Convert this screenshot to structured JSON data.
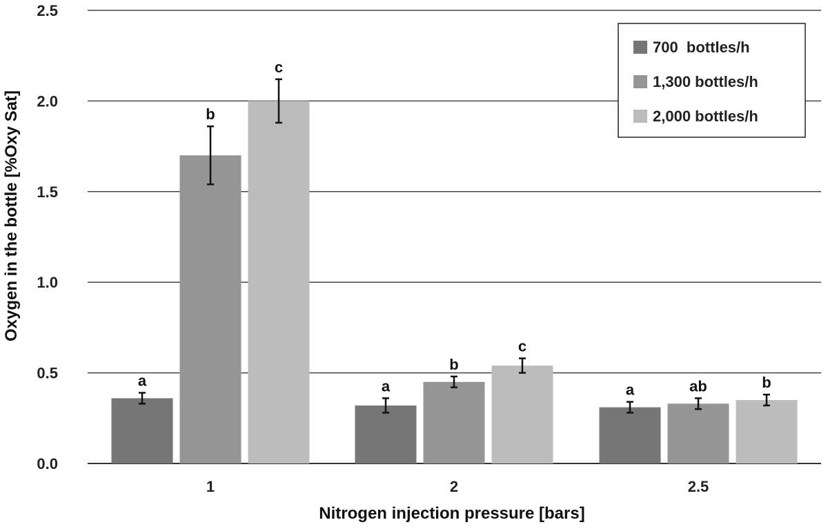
{
  "chart_data": {
    "type": "bar",
    "xlabel": "Nitrogen injection pressure [bars]",
    "ylabel": "Oxygen in the bottle [%Oxy Sat]",
    "ylim": [
      0,
      2.5
    ],
    "yticks": [
      "0.0",
      "0.5",
      "1.0",
      "1.5",
      "2.0",
      "2.5"
    ],
    "grid": "horizontal",
    "legend_position": "top-right",
    "categories": [
      "1",
      "2",
      "2.5"
    ],
    "series": [
      {
        "name": "700  bottles/h",
        "color": "#767676",
        "values": [
          0.36,
          0.32,
          0.31
        ],
        "errors": [
          0.03,
          0.04,
          0.03
        ],
        "labels": [
          "a",
          "a",
          "a"
        ]
      },
      {
        "name": "1,300 bottles/h",
        "color": "#959595",
        "values": [
          1.7,
          0.45,
          0.33
        ],
        "errors": [
          0.16,
          0.03,
          0.03
        ],
        "labels": [
          "b",
          "b",
          "ab"
        ]
      },
      {
        "name": "2,000 bottles/h",
        "color": "#bcbcbc",
        "values": [
          2.0,
          0.54,
          0.35
        ],
        "errors": [
          0.12,
          0.04,
          0.03
        ],
        "labels": [
          "c",
          "c",
          "b"
        ]
      }
    ]
  }
}
